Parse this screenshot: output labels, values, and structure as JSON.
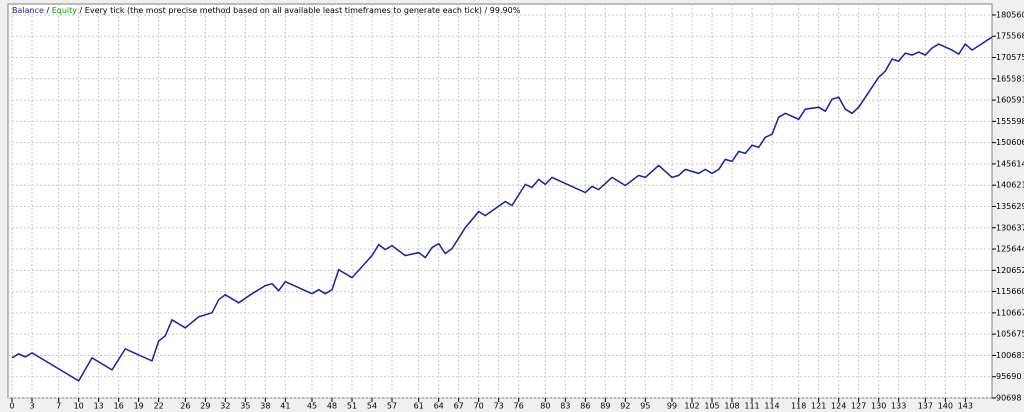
{
  "chart_data": {
    "type": "line",
    "legend": [
      {
        "name": "Balance",
        "color": "#1c1ca8"
      },
      {
        "name": "Equity",
        "color": "#00a000"
      }
    ],
    "separator": "/",
    "info": "Every tick (the most precise method based on all available least timeframes to generate each tick)",
    "quality": "99.90%",
    "x": [
      0,
      1,
      2,
      3,
      10,
      12,
      15,
      17,
      21,
      22,
      23,
      24,
      26,
      28,
      30,
      31,
      32,
      34,
      36,
      38,
      39,
      40,
      41,
      45,
      46,
      47,
      48,
      49,
      51,
      54,
      55,
      56,
      57,
      59,
      61,
      62,
      63,
      64,
      65,
      66,
      68,
      69,
      70,
      71,
      74,
      75,
      77,
      78,
      79,
      80,
      81,
      86,
      87,
      88,
      90,
      92,
      94,
      95,
      97,
      99,
      100,
      101,
      103,
      104,
      105,
      106,
      107,
      108,
      109,
      110,
      111,
      112,
      113,
      114,
      115,
      116,
      118,
      119,
      121,
      122,
      123,
      124,
      125,
      126,
      127,
      130,
      131,
      132,
      133,
      134,
      135,
      136,
      137,
      138,
      139,
      141,
      142,
      143,
      144,
      147
    ],
    "series": [
      {
        "name": "Balance",
        "color": "#1c1ca8",
        "values": [
          100110,
          101050,
          100340,
          101280,
          94700,
          100110,
          97280,
          102220,
          99400,
          104100,
          105280,
          109040,
          107160,
          109750,
          110690,
          113750,
          114920,
          113040,
          115160,
          117040,
          117510,
          115860,
          117980,
          115160,
          116100,
          115160,
          116100,
          120800,
          118920,
          124100,
          126680,
          125510,
          126450,
          124100,
          124800,
          123630,
          125980,
          126920,
          124570,
          125740,
          130680,
          132560,
          134450,
          133500,
          136800,
          135860,
          140800,
          140090,
          141970,
          140800,
          142440,
          138910,
          140330,
          139620,
          142440,
          140560,
          142910,
          142440,
          145260,
          142440,
          142910,
          144320,
          143380,
          144320,
          143380,
          144320,
          146680,
          146210,
          148560,
          148090,
          149970,
          149500,
          151850,
          152560,
          156550,
          157500,
          156090,
          158440,
          158910,
          157970,
          160790,
          161260,
          158440,
          157500,
          158910,
          165960,
          167370,
          170200,
          169730,
          171610,
          171140,
          171840,
          171140,
          172780,
          173720,
          172310,
          171370,
          173720,
          172310,
          175370
        ]
      }
    ],
    "xlim": [
      0,
      147
    ],
    "xticks": [
      0,
      3,
      7,
      10,
      13,
      16,
      19,
      22,
      26,
      29,
      32,
      35,
      38,
      41,
      45,
      48,
      51,
      54,
      57,
      61,
      64,
      67,
      70,
      73,
      76,
      80,
      83,
      86,
      89,
      92,
      95,
      99,
      102,
      105,
      108,
      111,
      114,
      118,
      121,
      124,
      127,
      130,
      133,
      137,
      140,
      143
    ],
    "ylim": [
      90698,
      183130
    ],
    "yticks": [
      90698,
      95690,
      100683,
      105675,
      110667,
      115660,
      120652,
      125644,
      130637,
      135629,
      140621,
      145614,
      150606,
      155598,
      160591,
      165583,
      170575,
      175568,
      180560
    ],
    "grid": true
  }
}
